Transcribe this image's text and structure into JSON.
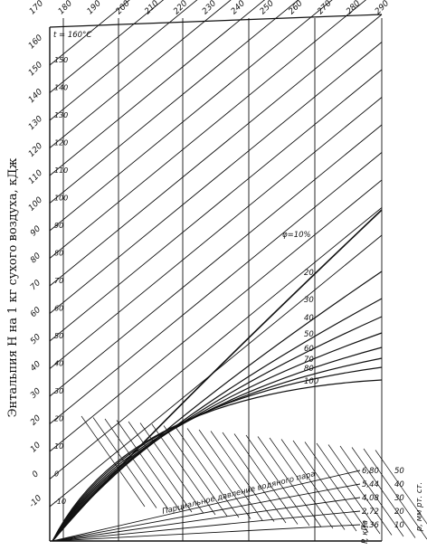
{
  "chart_data": {
    "type": "line",
    "title": "",
    "ylabel": "Энтальпия H на 1 кг сухого воздуха, кДж",
    "top_axis_ticks": [
      "170",
      "180",
      "190",
      "200",
      "210",
      "220",
      "230",
      "240",
      "250",
      "260",
      "270",
      "280",
      "290"
    ],
    "left_axis_ticks": [
      "160",
      "150",
      "140",
      "130",
      "120",
      "110",
      "100",
      "90",
      "80",
      "70",
      "60",
      "50",
      "40",
      "30",
      "20",
      "10",
      "0",
      "-10"
    ],
    "inline_enthalpy_labels": [
      "150",
      "140",
      "130",
      "120",
      "110",
      "100",
      "90",
      "80",
      "70",
      "60",
      "50",
      "40",
      "30",
      "20",
      "10",
      "0",
      "-10"
    ],
    "temperature_label": "t = 160°C",
    "rh_curves": [
      {
        "name": "φ=10%",
        "label": "φ=10%"
      },
      {
        "name": "20",
        "label": "20"
      },
      {
        "name": "30",
        "label": "30"
      },
      {
        "name": "40",
        "label": "40"
      },
      {
        "name": "50",
        "label": "50"
      },
      {
        "name": "60",
        "label": "60"
      },
      {
        "name": "70",
        "label": "70"
      },
      {
        "name": "80",
        "label": "80"
      },
      {
        "name": "100",
        "label": "100"
      }
    ],
    "partial_pressure_label": "Парциальное давление водяного пара",
    "pressure_axis_label_kpa": "P, кПа",
    "pressure_axis_label_mm": "p, мм рт. ст.",
    "pressure_scale": [
      {
        "kpa": "6,80",
        "mm": "50"
      },
      {
        "kpa": "5,44",
        "mm": "40"
      },
      {
        "kpa": "4,08",
        "mm": "30"
      },
      {
        "kpa": "2,72",
        "mm": "20"
      },
      {
        "kpa": "1,36",
        "mm": "10"
      }
    ],
    "grid": true
  }
}
